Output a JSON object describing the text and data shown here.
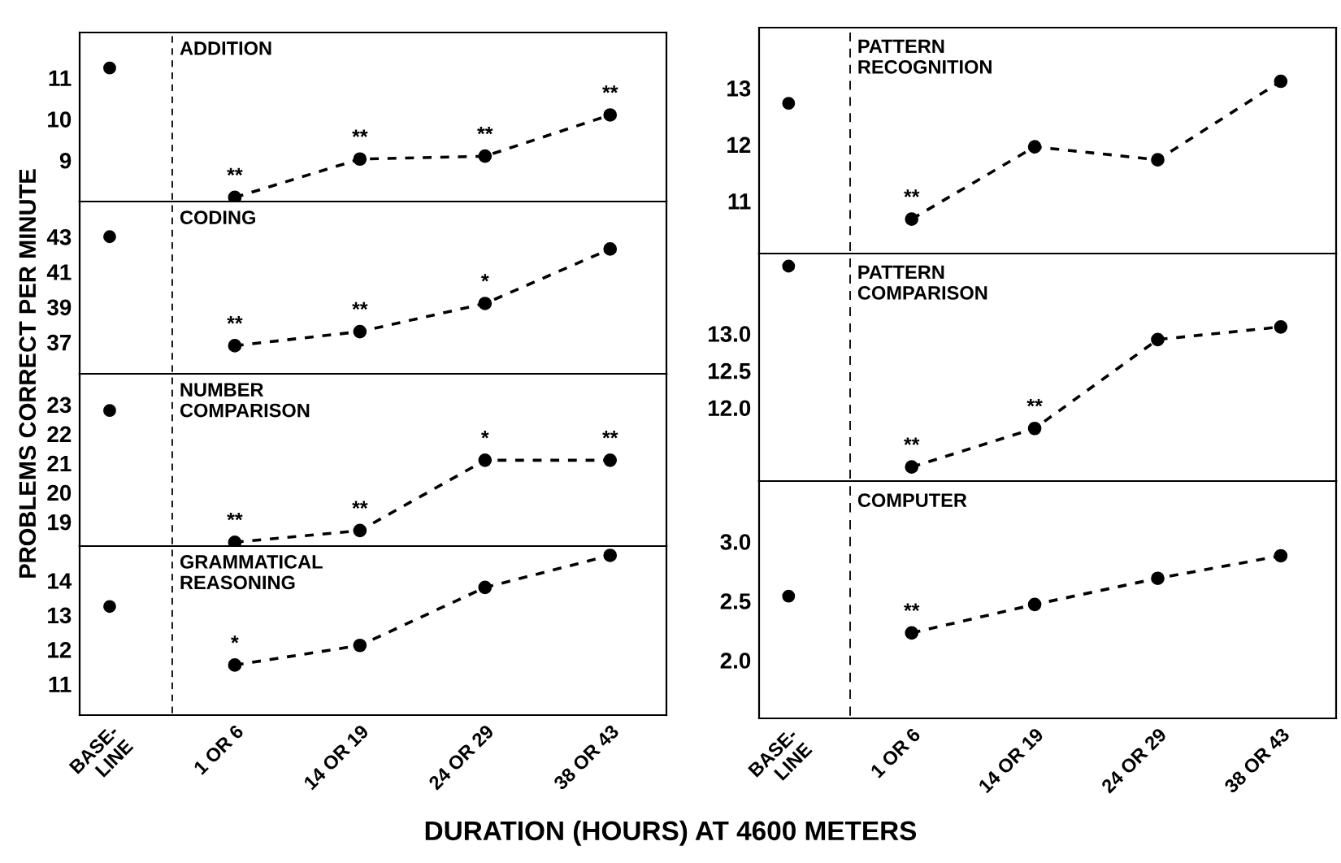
{
  "chart_data": [
    {
      "type": "line",
      "title": "ADDITION",
      "ylabel": "PROBLEMS CORRECT PER MINUTE",
      "categories": [
        "BASE-\nLINE",
        "1 OR 6",
        "14 OR 19",
        "24 OR 29",
        "38 OR 43"
      ],
      "series": [
        {
          "type": "scatter",
          "color": "#000000",
          "values": [
            11.24,
            null,
            null,
            null,
            null
          ]
        },
        {
          "color": "#000000",
          "line_style": "dashed",
          "values": [
            null,
            8.1,
            9.03,
            9.1,
            10.1
          ]
        }
      ],
      "ylim": [
        8.0,
        12.1
      ],
      "yticks": [
        9,
        10,
        11
      ],
      "tick_labels": "y",
      "marker": "circle",
      "grid": false,
      "annotations": [
        {
          "text": "**",
          "x": "1 OR 6",
          "y": 8.1
        },
        {
          "text": "**",
          "x": "14 OR 19",
          "y": 9.03
        },
        {
          "text": "**",
          "x": "24 OR 29",
          "y": 9.1
        },
        {
          "text": "**",
          "x": "38 OR 43",
          "y": 10.1
        }
      ]
    },
    {
      "type": "line",
      "title": "CODING",
      "categories": [
        "BASE-\nLINE",
        "1 OR 6",
        "14 OR 19",
        "24 OR 29",
        "38 OR 43"
      ],
      "series": [
        {
          "type": "scatter",
          "color": "#000000",
          "values": [
            43.0,
            null,
            null,
            null,
            null
          ]
        },
        {
          "color": "#000000",
          "line_style": "dashed",
          "values": [
            null,
            36.8,
            37.6,
            39.2,
            42.3
          ]
        }
      ],
      "ylim": [
        35.2,
        45.0
      ],
      "yticks": [
        37,
        39,
        41,
        43
      ],
      "tick_labels": "y",
      "marker": "circle",
      "grid": false,
      "annotations": [
        {
          "text": "**",
          "x": "1 OR 6",
          "y": 36.8
        },
        {
          "text": "**",
          "x": "14 OR 19",
          "y": 37.6
        },
        {
          "text": "*",
          "x": "24 OR 29",
          "y": 39.2
        }
      ]
    },
    {
      "type": "line",
      "title": "NUMBER\nCOMPARISON",
      "categories": [
        "BASE-\nLINE",
        "1 OR 6",
        "14 OR 19",
        "24 OR 29",
        "38 OR 43"
      ],
      "series": [
        {
          "type": "scatter",
          "color": "#000000",
          "values": [
            22.8,
            null,
            null,
            null,
            null
          ]
        },
        {
          "color": "#000000",
          "line_style": "dashed",
          "values": [
            null,
            18.3,
            18.7,
            21.1,
            21.1
          ]
        }
      ],
      "ylim": [
        18.17,
        24.05
      ],
      "yticks": [
        19,
        20,
        21,
        22,
        23
      ],
      "tick_labels": "y",
      "marker": "circle",
      "grid": false,
      "annotations": [
        {
          "text": "**",
          "x": "1 OR 6",
          "y": 18.3
        },
        {
          "text": "**",
          "x": "14 OR 19",
          "y": 18.7
        },
        {
          "text": "*",
          "x": "24 OR 29",
          "y": 21.1
        },
        {
          "text": "**",
          "x": "38 OR 43",
          "y": 21.1
        }
      ]
    },
    {
      "type": "line",
      "title": "GRAMMATICAL\nREASONING",
      "xlabel": "DURATION (HOURS) AT 4600 METERS",
      "categories": [
        "BASE-\nLINE",
        "1 OR 6",
        "14 OR 19",
        "24 OR 29",
        "38 OR 43"
      ],
      "series": [
        {
          "type": "scatter",
          "color": "#000000",
          "values": [
            13.25,
            null,
            null,
            null,
            null
          ]
        },
        {
          "color": "#000000",
          "line_style": "dashed",
          "values": [
            null,
            11.55,
            12.12,
            13.8,
            14.73
          ]
        }
      ],
      "ylim": [
        10.1,
        15.0
      ],
      "yticks": [
        11,
        12,
        13,
        14
      ],
      "marker": "circle",
      "grid": false,
      "annotations": [
        {
          "text": "*",
          "x": "1 OR 6",
          "y": 11.55
        }
      ]
    },
    {
      "type": "line",
      "title": "PATTERN\nRECOGNITION",
      "categories": [
        "BASE-\nLINE",
        "1 OR 6",
        "14 OR 19",
        "24 OR 29",
        "38 OR 43"
      ],
      "series": [
        {
          "type": "scatter",
          "color": "#000000",
          "values": [
            12.73,
            null,
            null,
            null,
            null
          ]
        },
        {
          "color": "#000000",
          "line_style": "dashed",
          "values": [
            null,
            10.68,
            11.96,
            11.73,
            13.12
          ]
        }
      ],
      "ylim": [
        10.07,
        14.07
      ],
      "yticks": [
        11,
        12,
        13
      ],
      "tick_labels": "y",
      "marker": "circle",
      "grid": false,
      "annotations": [
        {
          "text": "**",
          "x": "1 OR 6",
          "y": 10.68
        }
      ]
    },
    {
      "type": "line",
      "title": "PATTERN\nCOMPARISON",
      "categories": [
        "BASE-\nLINE",
        "1 OR 6",
        "14 OR 19",
        "24 OR 29",
        "38 OR 43"
      ],
      "series": [
        {
          "type": "scatter",
          "color": "#000000",
          "values": [
            13.91,
            null,
            null,
            null,
            null
          ]
        },
        {
          "color": "#000000",
          "line_style": "dashed",
          "values": [
            null,
            11.2,
            11.72,
            12.92,
            13.09
          ]
        }
      ],
      "ylim": [
        11.01,
        14.08
      ],
      "yticks": [
        {
          "value": 12.0,
          "label": "12.0"
        },
        12.5,
        {
          "value": 13.0,
          "label": "13.0"
        }
      ],
      "tick_labels": "y",
      "marker": "circle",
      "grid": false,
      "annotations": [
        {
          "text": "**",
          "x": "1 OR 6",
          "y": 11.2
        },
        {
          "text": "**",
          "x": "14 OR 19",
          "y": 11.72
        }
      ]
    },
    {
      "type": "line",
      "title": "COMPUTER",
      "categories": [
        "BASE-\nLINE",
        "1 OR 6",
        "14 OR 19",
        "24 OR 29",
        "38 OR 43"
      ],
      "series": [
        {
          "type": "scatter",
          "color": "#000000",
          "values": [
            2.54,
            null,
            null,
            null,
            null
          ]
        },
        {
          "color": "#000000",
          "line_style": "dashed",
          "values": [
            null,
            2.23,
            2.47,
            2.69,
            2.88
          ]
        }
      ],
      "ylim": [
        1.51,
        3.51
      ],
      "yticks": [
        {
          "value": 2.0,
          "label": "2.0"
        },
        2.5,
        {
          "value": 3.0,
          "label": "3.0"
        }
      ],
      "marker": "circle",
      "grid": false,
      "annotations": [
        {
          "text": "**",
          "x": "1 OR 6",
          "y": 2.23
        }
      ]
    }
  ]
}
